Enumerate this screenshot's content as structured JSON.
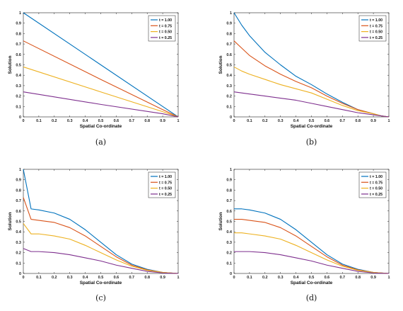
{
  "chart_data": [
    {
      "type": "line",
      "caption": "(a)",
      "xlabel": "Spatial Co-ordinate",
      "ylabel": "Solution",
      "xlim": [
        0,
        1
      ],
      "ylim": [
        0,
        1
      ],
      "xticks": [
        "0",
        "0.1",
        "0.2",
        "0.3",
        "0.4",
        "0.5",
        "0.6",
        "0.7",
        "0.8",
        "0.9",
        "1"
      ],
      "yticks": [
        "0",
        "0.1",
        "0.2",
        "0.3",
        "0.4",
        "0.5",
        "0.6",
        "0.7",
        "0.8",
        "0.9",
        "1"
      ],
      "legend_position": "top-right",
      "series": [
        {
          "name": "t = 1.00",
          "color": "#0072BD",
          "x": [
            0,
            0.5,
            0.9,
            1
          ],
          "y": [
            1.0,
            0.5,
            0.1,
            0
          ]
        },
        {
          "name": "t = 0.75",
          "color": "#D95319",
          "x": [
            0,
            0.5,
            0.9,
            1
          ],
          "y": [
            0.73,
            0.36,
            0.07,
            0
          ]
        },
        {
          "name": "t = 0.50",
          "color": "#EDB120",
          "x": [
            0,
            0.5,
            0.9,
            1
          ],
          "y": [
            0.48,
            0.24,
            0.05,
            0
          ]
        },
        {
          "name": "t = 0.25",
          "color": "#7E2F8E",
          "x": [
            0,
            0.5,
            0.9,
            1
          ],
          "y": [
            0.24,
            0.12,
            0.03,
            0
          ]
        }
      ]
    },
    {
      "type": "line",
      "caption": "(b)",
      "xlabel": "Spatial Co-ordinate",
      "ylabel": "Solution",
      "xlim": [
        0,
        1
      ],
      "ylim": [
        0,
        1
      ],
      "xticks": [
        "0",
        "0.1",
        "0.2",
        "0.3",
        "0.4",
        "0.5",
        "0.6",
        "0.7",
        "0.8",
        "0.9",
        "1"
      ],
      "yticks": [
        "0",
        "0.1",
        "0.2",
        "0.3",
        "0.4",
        "0.5",
        "0.6",
        "0.7",
        "0.8",
        "0.9",
        "1"
      ],
      "legend_position": "top-right",
      "series": [
        {
          "name": "t = 1.00",
          "color": "#0072BD",
          "x": [
            0,
            0.05,
            0.1,
            0.2,
            0.3,
            0.4,
            0.5,
            0.6,
            0.7,
            0.8,
            0.9,
            0.95,
            1
          ],
          "y": [
            1.0,
            0.88,
            0.78,
            0.62,
            0.5,
            0.39,
            0.31,
            0.22,
            0.14,
            0.07,
            0.03,
            0.01,
            0
          ]
        },
        {
          "name": "t = 0.75",
          "color": "#D95319",
          "x": [
            0,
            0.05,
            0.1,
            0.2,
            0.3,
            0.4,
            0.5,
            0.6,
            0.7,
            0.8,
            0.9,
            0.95,
            1
          ],
          "y": [
            0.73,
            0.66,
            0.59,
            0.49,
            0.41,
            0.34,
            0.28,
            0.2,
            0.13,
            0.07,
            0.03,
            0.01,
            0
          ]
        },
        {
          "name": "t = 0.50",
          "color": "#EDB120",
          "x": [
            0,
            0.05,
            0.1,
            0.2,
            0.3,
            0.4,
            0.5,
            0.6,
            0.7,
            0.8,
            0.9,
            0.95,
            1
          ],
          "y": [
            0.48,
            0.44,
            0.41,
            0.36,
            0.31,
            0.27,
            0.23,
            0.17,
            0.11,
            0.06,
            0.03,
            0.01,
            0
          ]
        },
        {
          "name": "t = 0.25",
          "color": "#7E2F8E",
          "x": [
            0,
            0.05,
            0.1,
            0.2,
            0.3,
            0.4,
            0.5,
            0.6,
            0.7,
            0.8,
            0.9,
            0.95,
            1
          ],
          "y": [
            0.24,
            0.23,
            0.22,
            0.2,
            0.18,
            0.16,
            0.13,
            0.1,
            0.07,
            0.04,
            0.02,
            0.01,
            0
          ]
        }
      ]
    },
    {
      "type": "line",
      "caption": "(c)",
      "xlabel": "Spatial Co-ordinate",
      "ylabel": "Solution",
      "xlim": [
        0,
        1
      ],
      "ylim": [
        0,
        1
      ],
      "xticks": [
        "0",
        "0.1",
        "0.2",
        "0.3",
        "0.4",
        "0.5",
        "0.6",
        "0.7",
        "0.8",
        "0.9",
        "1"
      ],
      "yticks": [
        "0",
        "0.1",
        "0.2",
        "0.3",
        "0.4",
        "0.5",
        "0.6",
        "0.7",
        "0.8",
        "0.9",
        "1"
      ],
      "legend_position": "top-right",
      "series": [
        {
          "name": "t = 1.00",
          "color": "#0072BD",
          "x": [
            0,
            0.05,
            0.1,
            0.2,
            0.3,
            0.4,
            0.5,
            0.6,
            0.7,
            0.8,
            0.9,
            0.95,
            1
          ],
          "y": [
            1.0,
            0.62,
            0.61,
            0.58,
            0.52,
            0.42,
            0.3,
            0.18,
            0.09,
            0.04,
            0.01,
            0.005,
            0
          ]
        },
        {
          "name": "t = 0.75",
          "color": "#D95319",
          "x": [
            0,
            0.05,
            0.1,
            0.2,
            0.3,
            0.4,
            0.5,
            0.6,
            0.7,
            0.8,
            0.9,
            0.95,
            1
          ],
          "y": [
            0.73,
            0.52,
            0.51,
            0.49,
            0.44,
            0.36,
            0.26,
            0.16,
            0.08,
            0.035,
            0.01,
            0.005,
            0
          ]
        },
        {
          "name": "t = 0.50",
          "color": "#EDB120",
          "x": [
            0,
            0.05,
            0.1,
            0.2,
            0.3,
            0.4,
            0.5,
            0.6,
            0.7,
            0.8,
            0.9,
            0.95,
            1
          ],
          "y": [
            0.48,
            0.38,
            0.38,
            0.36,
            0.33,
            0.27,
            0.2,
            0.13,
            0.07,
            0.03,
            0.01,
            0.005,
            0
          ]
        },
        {
          "name": "t = 0.25",
          "color": "#7E2F8E",
          "x": [
            0,
            0.05,
            0.1,
            0.2,
            0.3,
            0.4,
            0.5,
            0.6,
            0.7,
            0.8,
            0.9,
            0.95,
            1
          ],
          "y": [
            0.24,
            0.21,
            0.21,
            0.2,
            0.18,
            0.15,
            0.12,
            0.08,
            0.05,
            0.02,
            0.005,
            0.002,
            0
          ]
        }
      ]
    },
    {
      "type": "line",
      "caption": "(d)",
      "xlabel": "Spatial Co-ordinate",
      "ylabel": "Solution",
      "xlim": [
        0,
        1
      ],
      "ylim": [
        0,
        1
      ],
      "xticks": [
        "0",
        "0.1",
        "0.2",
        "0.3",
        "0.4",
        "0.5",
        "0.6",
        "0.7",
        "0.8",
        "0.9",
        "1"
      ],
      "yticks": [
        "0",
        "0.1",
        "0.2",
        "0.3",
        "0.4",
        "0.5",
        "0.6",
        "0.7",
        "0.8",
        "0.9",
        "1"
      ],
      "legend_position": "top-right",
      "series": [
        {
          "name": "t = 1.00",
          "color": "#0072BD",
          "x": [
            0,
            0.05,
            0.1,
            0.2,
            0.3,
            0.4,
            0.5,
            0.6,
            0.7,
            0.8,
            0.9,
            0.95,
            1
          ],
          "y": [
            0.62,
            0.62,
            0.61,
            0.58,
            0.52,
            0.42,
            0.3,
            0.18,
            0.09,
            0.04,
            0.01,
            0.005,
            0
          ]
        },
        {
          "name": "t = 0.75",
          "color": "#D95319",
          "x": [
            0,
            0.05,
            0.1,
            0.2,
            0.3,
            0.4,
            0.5,
            0.6,
            0.7,
            0.8,
            0.9,
            0.95,
            1
          ],
          "y": [
            0.52,
            0.52,
            0.51,
            0.49,
            0.44,
            0.36,
            0.26,
            0.16,
            0.08,
            0.035,
            0.01,
            0.005,
            0
          ]
        },
        {
          "name": "t = 0.50",
          "color": "#EDB120",
          "x": [
            0,
            0.05,
            0.1,
            0.2,
            0.3,
            0.4,
            0.5,
            0.6,
            0.7,
            0.8,
            0.9,
            0.95,
            1
          ],
          "y": [
            0.39,
            0.39,
            0.38,
            0.36,
            0.33,
            0.27,
            0.2,
            0.13,
            0.07,
            0.03,
            0.01,
            0.005,
            0
          ]
        },
        {
          "name": "t = 0.25",
          "color": "#7E2F8E",
          "x": [
            0,
            0.05,
            0.1,
            0.2,
            0.3,
            0.4,
            0.5,
            0.6,
            0.7,
            0.8,
            0.9,
            0.95,
            1
          ],
          "y": [
            0.21,
            0.21,
            0.21,
            0.2,
            0.18,
            0.15,
            0.12,
            0.08,
            0.05,
            0.02,
            0.005,
            0.002,
            0
          ]
        }
      ]
    }
  ]
}
